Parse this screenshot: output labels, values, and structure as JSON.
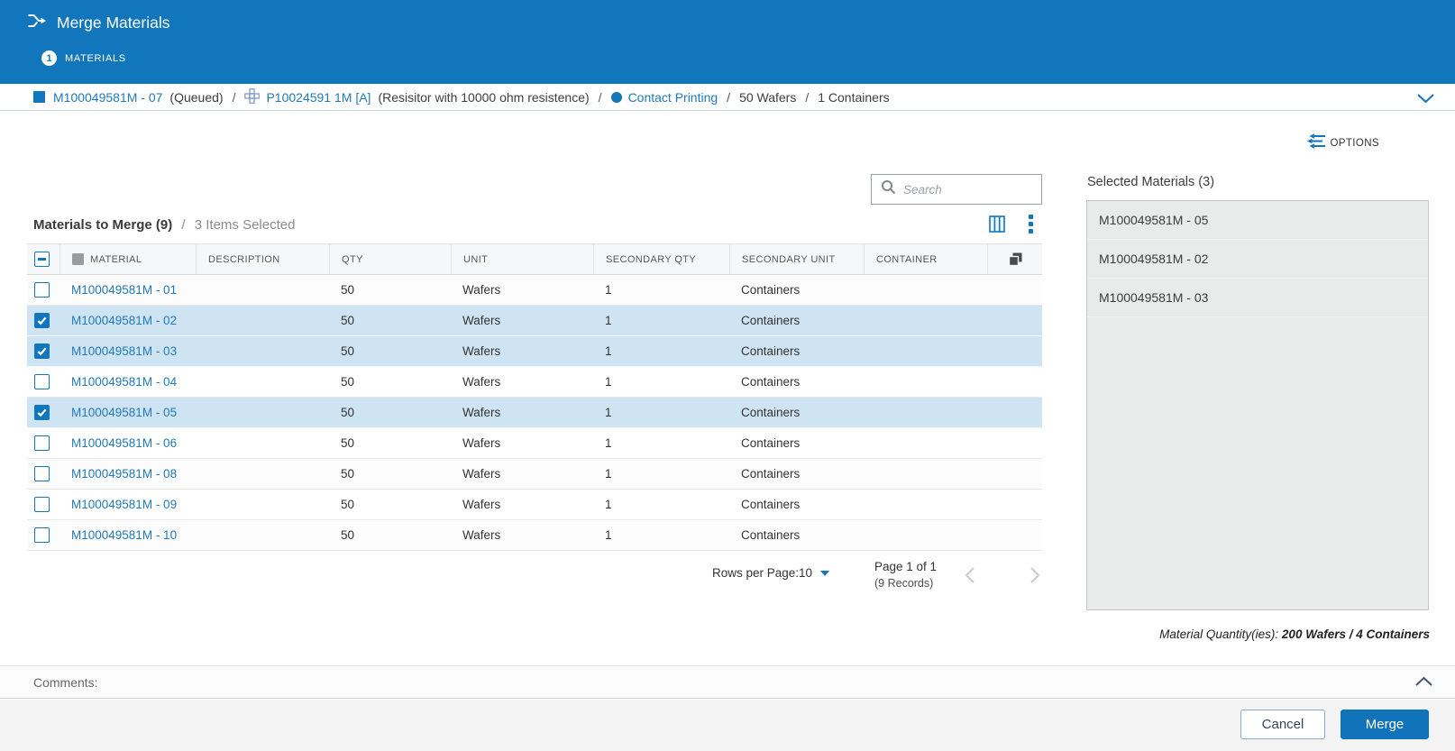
{
  "header": {
    "title": "Merge Materials",
    "step_number": "1",
    "step_label": "MATERIALS"
  },
  "breadcrumb": {
    "material": "M100049581M - 07",
    "material_state": "(Queued)",
    "separator": "/",
    "process": "P10024591 1M [A]",
    "process_desc": "(Resisitor with 10000 ohm resistence)",
    "step": "Contact Printing",
    "qty": "50 Wafers",
    "containers": "1 Containers"
  },
  "toolbar": {
    "options_label": "OPTIONS",
    "search_placeholder": "Search"
  },
  "table": {
    "title": "Materials to Merge (9)",
    "separator": "/",
    "selection_summary": "3 Items Selected",
    "columns": [
      "MATERIAL",
      "DESCRIPTION",
      "QTY",
      "UNIT",
      "SECONDARY QTY",
      "SECONDARY UNIT",
      "CONTAINER"
    ],
    "rows": [
      {
        "material": "M100049581M - 01",
        "description": "",
        "qty": "50",
        "unit": "Wafers",
        "secondary_qty": "1",
        "secondary_unit": "Containers",
        "container": "",
        "checked": false
      },
      {
        "material": "M100049581M - 02",
        "description": "",
        "qty": "50",
        "unit": "Wafers",
        "secondary_qty": "1",
        "secondary_unit": "Containers",
        "container": "",
        "checked": true
      },
      {
        "material": "M100049581M - 03",
        "description": "",
        "qty": "50",
        "unit": "Wafers",
        "secondary_qty": "1",
        "secondary_unit": "Containers",
        "container": "",
        "checked": true
      },
      {
        "material": "M100049581M - 04",
        "description": "",
        "qty": "50",
        "unit": "Wafers",
        "secondary_qty": "1",
        "secondary_unit": "Containers",
        "container": "",
        "checked": false
      },
      {
        "material": "M100049581M - 05",
        "description": "",
        "qty": "50",
        "unit": "Wafers",
        "secondary_qty": "1",
        "secondary_unit": "Containers",
        "container": "",
        "checked": true
      },
      {
        "material": "M100049581M - 06",
        "description": "",
        "qty": "50",
        "unit": "Wafers",
        "secondary_qty": "1",
        "secondary_unit": "Containers",
        "container": "",
        "checked": false
      },
      {
        "material": "M100049581M - 08",
        "description": "",
        "qty": "50",
        "unit": "Wafers",
        "secondary_qty": "1",
        "secondary_unit": "Containers",
        "container": "",
        "checked": false
      },
      {
        "material": "M100049581M - 09",
        "description": "",
        "qty": "50",
        "unit": "Wafers",
        "secondary_qty": "1",
        "secondary_unit": "Containers",
        "container": "",
        "checked": false
      },
      {
        "material": "M100049581M - 10",
        "description": "",
        "qty": "50",
        "unit": "Wafers",
        "secondary_qty": "1",
        "secondary_unit": "Containers",
        "container": "",
        "checked": false
      }
    ],
    "pagination": {
      "rows_per_page": "Rows per Page:10",
      "page": "Page 1 of 1",
      "records": "(9 Records)"
    }
  },
  "selected_panel": {
    "title": "Selected Materials (3)",
    "items": [
      "M100049581M - 05",
      "M100049581M - 02",
      "M100049581M - 03"
    ],
    "quantity_label": "Material Quantity(ies):",
    "quantity_value": "200 Wafers / 4 Containers"
  },
  "comments": {
    "label": "Comments:"
  },
  "footer": {
    "cancel_label": "Cancel",
    "merge_label": "Merge"
  },
  "colors": {
    "accent": "#1176bc",
    "link": "#2279b8",
    "selected_row": "#cfe4f2"
  }
}
